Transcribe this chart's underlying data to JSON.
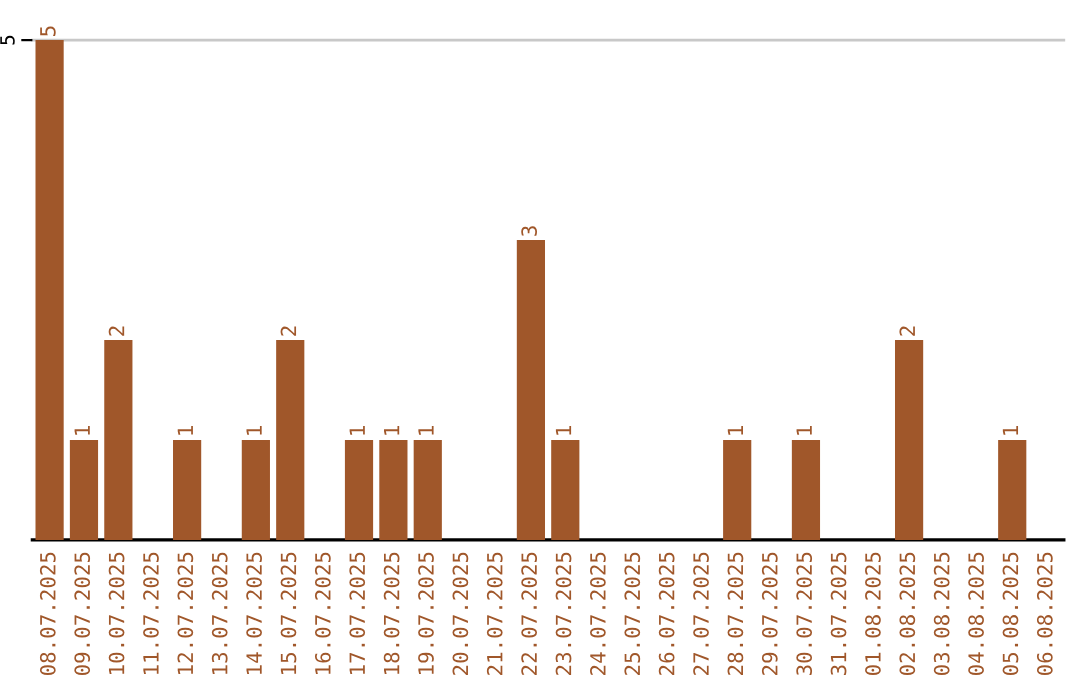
{
  "chart_data": {
    "type": "bar",
    "categories": [
      "08.07.2025",
      "09.07.2025",
      "10.07.2025",
      "11.07.2025",
      "12.07.2025",
      "13.07.2025",
      "14.07.2025",
      "15.07.2025",
      "16.07.2025",
      "17.07.2025",
      "18.07.2025",
      "19.07.2025",
      "20.07.2025",
      "21.07.2025",
      "22.07.2025",
      "23.07.2025",
      "24.07.2025",
      "25.07.2025",
      "26.07.2025",
      "27.07.2025",
      "28.07.2025",
      "29.07.2025",
      "30.07.2025",
      "31.07.2025",
      "01.08.2025",
      "02.08.2025",
      "03.08.2025",
      "04.08.2025",
      "05.08.2025",
      "06.08.2025"
    ],
    "values": [
      5,
      1,
      2,
      0,
      1,
      0,
      1,
      2,
      0,
      1,
      1,
      1,
      0,
      0,
      3,
      1,
      0,
      0,
      0,
      0,
      1,
      0,
      1,
      0,
      0,
      2,
      0,
      0,
      1,
      0
    ],
    "value_labels": [
      "5",
      "1",
      "2",
      null,
      "1",
      null,
      "1",
      "2",
      null,
      "1",
      "1",
      "1",
      null,
      null,
      "3",
      "1",
      null,
      null,
      null,
      null,
      "1",
      null,
      "1",
      null,
      null,
      "2",
      null,
      null,
      "1",
      null
    ],
    "color": "#a0572a",
    "ylim": [
      0,
      5
    ],
    "yticks": [
      5
    ],
    "ref_lines": [
      {
        "axis": "y",
        "value": 5,
        "color": "#c8c8c8"
      }
    ],
    "legend": false
  }
}
